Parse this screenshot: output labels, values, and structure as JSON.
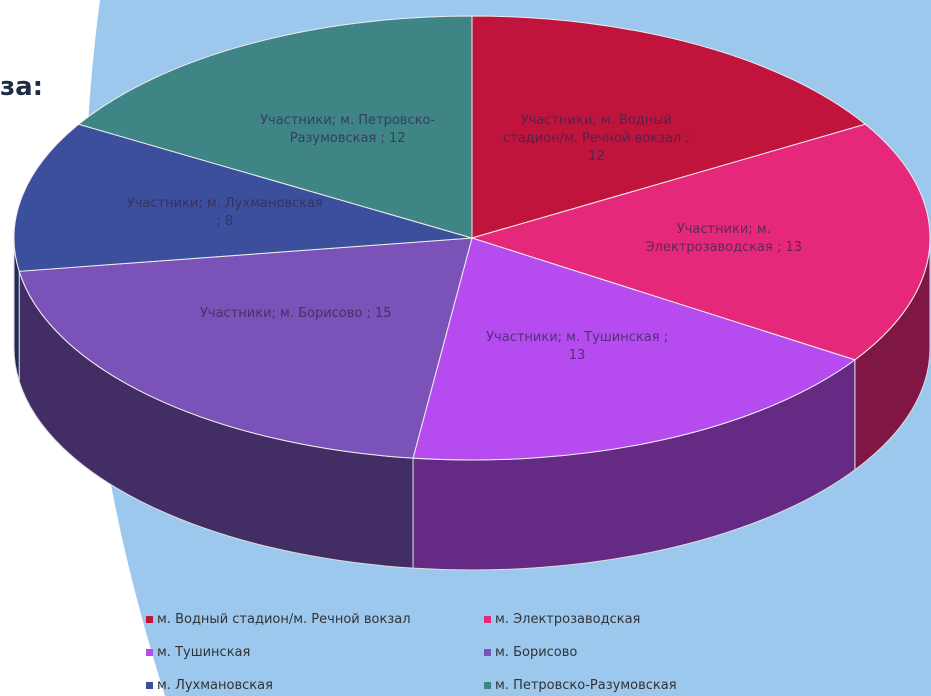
{
  "heading": "за:",
  "chart_data": {
    "type": "pie3d",
    "series_name": "Участники",
    "categories": [
      "м. Водный стадион/м. Речной вокзал",
      "м. Электрозаводская",
      "м. Тушинская",
      "м. Борисово",
      "м. Лухмановская",
      "м. Петровско-Разумовская"
    ],
    "values": [
      12,
      13,
      13,
      15,
      8,
      12
    ],
    "value_labels": [
      "Участники; м. Водный стадион/м. Речной вокзал ; 12",
      "Участники; м. Электрозаводская ; 13",
      "Участники; м. Тушинская ; 13",
      "Участники; м. Борисово ; 15",
      "Участники; м. Лухмановская ; 8",
      "Участники; м. Петровско-Разумовская ; 12"
    ],
    "colors": [
      "#c0143c",
      "#e6287a",
      "#b64cf0",
      "#7a52b8",
      "#3b4f9c",
      "#3f8585"
    ],
    "legend": "bottom"
  }
}
